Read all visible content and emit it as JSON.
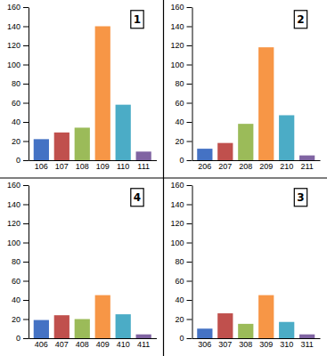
{
  "chart_data": [
    {
      "type": "bar",
      "title": "1",
      "categories": [
        "106",
        "107",
        "108",
        "109",
        "110",
        "111"
      ],
      "values": [
        22,
        29,
        34,
        140,
        58,
        9
      ],
      "colors": [
        "#4472c4",
        "#c0504d",
        "#9bbb59",
        "#f79646",
        "#4bacc6",
        "#8064a2"
      ],
      "ylim": [
        0,
        160
      ],
      "yticks": [
        0,
        20,
        40,
        60,
        80,
        100,
        120,
        140,
        160
      ]
    },
    {
      "type": "bar",
      "title": "2",
      "categories": [
        "206",
        "207",
        "208",
        "209",
        "210",
        "211"
      ],
      "values": [
        12,
        18,
        38,
        118,
        47,
        5
      ],
      "colors": [
        "#4472c4",
        "#c0504d",
        "#9bbb59",
        "#f79646",
        "#4bacc6",
        "#8064a2"
      ],
      "ylim": [
        0,
        160
      ],
      "yticks": [
        0,
        20,
        40,
        60,
        80,
        100,
        120,
        140,
        160
      ]
    },
    {
      "type": "bar",
      "title": "4",
      "categories": [
        "406",
        "407",
        "408",
        "409",
        "410",
        "411"
      ],
      "values": [
        19,
        24,
        20,
        45,
        25,
        4
      ],
      "colors": [
        "#4472c4",
        "#c0504d",
        "#9bbb59",
        "#f79646",
        "#4bacc6",
        "#8064a2"
      ],
      "ylim": [
        0,
        160
      ],
      "yticks": [
        0,
        20,
        40,
        60,
        80,
        100,
        120,
        140,
        160
      ]
    },
    {
      "type": "bar",
      "title": "3",
      "categories": [
        "306",
        "307",
        "308",
        "309",
        "310",
        "311"
      ],
      "values": [
        10,
        26,
        15,
        45,
        17,
        4
      ],
      "colors": [
        "#4472c4",
        "#c0504d",
        "#9bbb59",
        "#f79646",
        "#4bacc6",
        "#8064a2"
      ],
      "ylim": [
        0,
        160
      ],
      "yticks": [
        0,
        20,
        40,
        60,
        80,
        100,
        120,
        140,
        160
      ]
    }
  ]
}
